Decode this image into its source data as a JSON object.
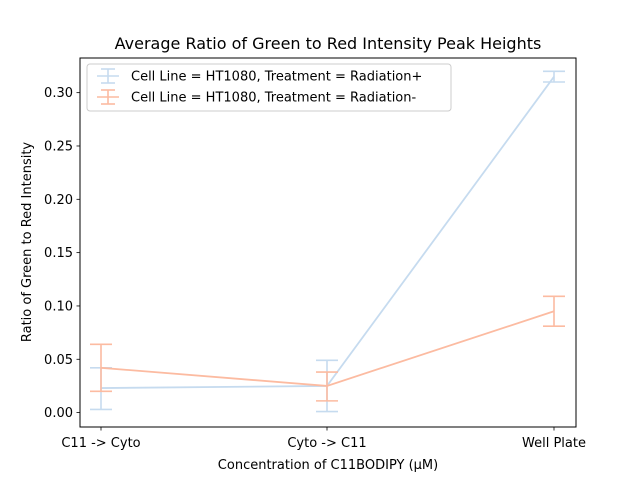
{
  "chart_data": {
    "type": "line",
    "title": "Average Ratio of Green to Red Intensity Peak Heights",
    "xlabel": "Concentration of C11BODIPY (μM)",
    "ylabel": "Ratio of Green to Red Intensity",
    "categories": [
      "C11 -> Cyto",
      "Cyto -> C11",
      "Well Plate"
    ],
    "ylim": [
      -0.0135,
      0.3325
    ],
    "yticks": [
      "0.00",
      "0.05",
      "0.10",
      "0.15",
      "0.20",
      "0.25",
      "0.30"
    ],
    "ytick_values": [
      0,
      0.05,
      0.1,
      0.15,
      0.2,
      0.25,
      0.3
    ],
    "grid": false,
    "legend_position": "top-left",
    "series": [
      {
        "name": "Cell Line = HT1080, Treatment = Radiation+",
        "color": "#c6dbef",
        "values": [
          0.023,
          0.025,
          0.315
        ],
        "err_low": [
          0.003,
          0.001,
          0.31
        ],
        "err_high": [
          0.042,
          0.049,
          0.32
        ]
      },
      {
        "name": "Cell Line = HT1080, Treatment = Radiation-",
        "color": "#fcbba1",
        "values": [
          0.042,
          0.025,
          0.095
        ],
        "err_low": [
          0.02,
          0.011,
          0.081
        ],
        "err_high": [
          0.064,
          0.038,
          0.109
        ]
      }
    ]
  }
}
